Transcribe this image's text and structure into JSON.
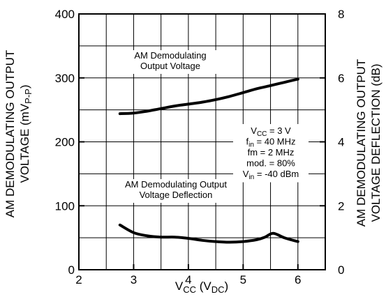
{
  "chart_data": {
    "type": "line",
    "x_label": {
      "main": "V",
      "main_sub": "CC",
      "unit": "V",
      "unit_sub": "DC"
    },
    "y_left_label": {
      "line1": "AM DEMODULATING OUTPUT",
      "line2_pre": "VOLTAGE (mV",
      "line2_sub": "P-P",
      "line2_post": ")"
    },
    "y_right_label": {
      "line1": "AM DEMODULATING OUTPUT",
      "line2": "VOLTAGE DEFLECTION (dB)"
    },
    "x_ticks": [
      "2",
      "3",
      "4",
      "5",
      "6"
    ],
    "y_left_ticks": [
      "0",
      "100",
      "200",
      "300",
      "400"
    ],
    "y_right_ticks": [
      "0",
      "2",
      "4",
      "6",
      "8"
    ],
    "xlim": [
      2,
      6.5
    ],
    "ylim_left": [
      0,
      400
    ],
    "ylim_right": [
      0,
      8
    ],
    "grid": true,
    "series": [
      {
        "name_lines": [
          "AM Demodulating",
          "Output Voltage"
        ],
        "axis": "left",
        "x": [
          2.75,
          3.0,
          3.25,
          3.5,
          3.75,
          4.0,
          4.25,
          4.5,
          4.75,
          5.0,
          5.25,
          5.5,
          5.75,
          6.0
        ],
        "y": [
          244,
          245,
          248,
          252,
          256,
          259,
          262,
          266,
          271,
          277,
          283,
          288,
          293,
          298
        ]
      },
      {
        "name_lines": [
          "AM Demodulating Output",
          "Voltage Deflection"
        ],
        "axis": "right",
        "x": [
          2.75,
          3.0,
          3.25,
          3.5,
          3.75,
          4.0,
          4.25,
          4.5,
          4.75,
          5.0,
          5.25,
          5.4,
          5.55,
          5.75,
          6.0
        ],
        "y": [
          1.4,
          1.16,
          1.06,
          1.02,
          1.02,
          0.98,
          0.92,
          0.88,
          0.86,
          0.88,
          0.94,
          1.02,
          1.14,
          1.0,
          0.88
        ]
      }
    ],
    "conditions": [
      {
        "pre": "V",
        "sub": "CC",
        "post": " = 3 V"
      },
      {
        "pre": "f",
        "sub": "in",
        "post": " = 40 MHz"
      },
      {
        "pre": "fm = 2 MHz",
        "sub": "",
        "post": ""
      },
      {
        "pre": "mod. = 80%",
        "sub": "",
        "post": ""
      },
      {
        "pre": "V",
        "sub": "in",
        "post": " = -40 dBm"
      }
    ]
  }
}
